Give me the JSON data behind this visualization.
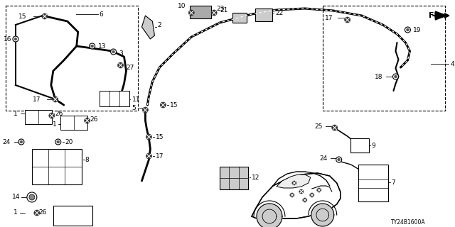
{
  "bg_color": "#ffffff",
  "diagram_code": "TY24B1600A",
  "lc": "#000000",
  "gray": "#888888",
  "darkgray": "#444444"
}
